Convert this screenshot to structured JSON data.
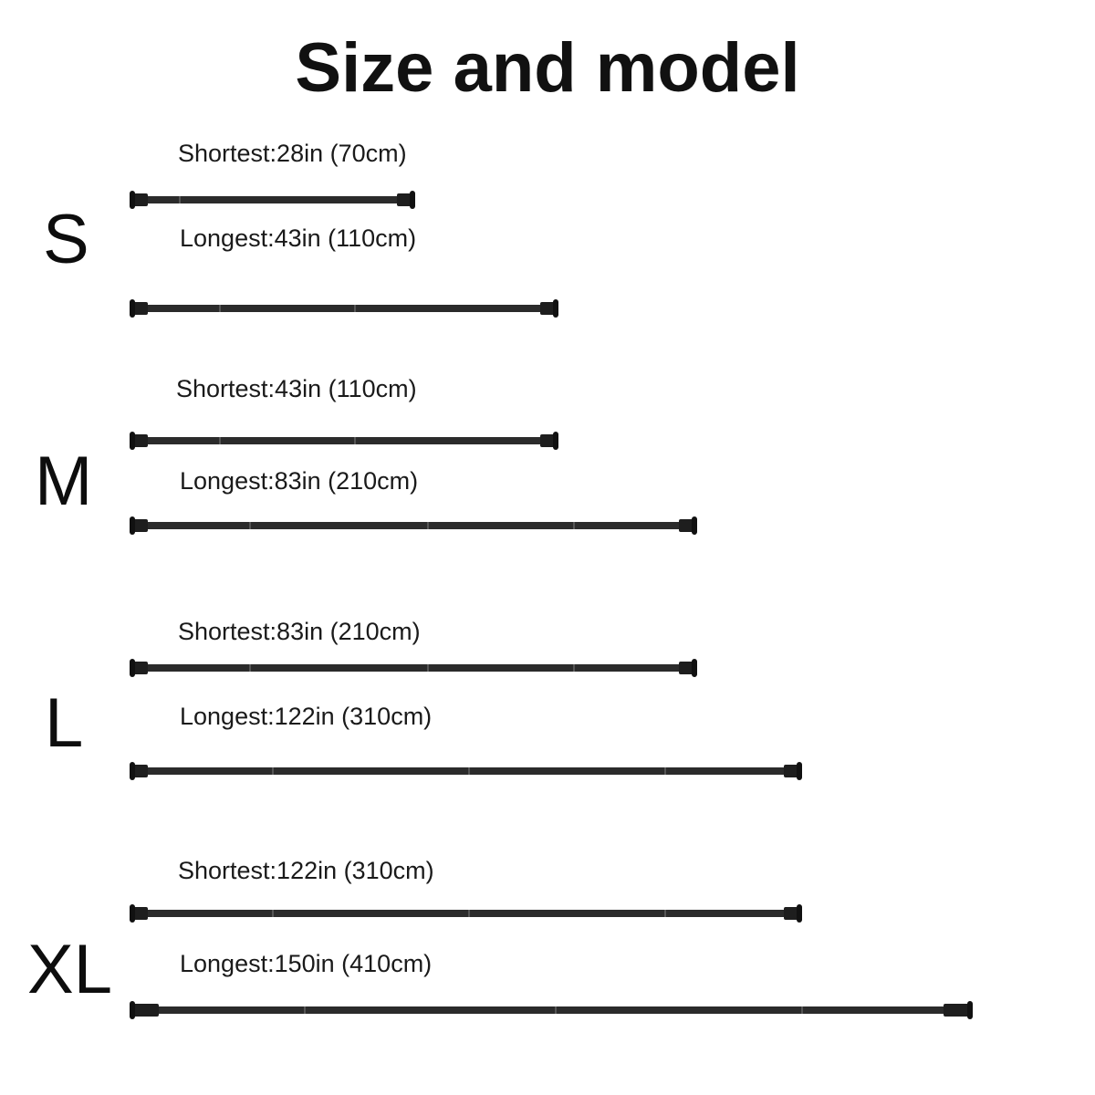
{
  "title": "Size and model",
  "models": [
    {
      "size": "S",
      "shortest": {
        "label": "Shortest:28in (70cm)",
        "in": 28,
        "cm": 70
      },
      "longest": {
        "label": "Longest:43in (110cm)",
        "in": 43,
        "cm": 110
      }
    },
    {
      "size": "M",
      "shortest": {
        "label": "Shortest:43in (110cm)",
        "in": 43,
        "cm": 110
      },
      "longest": {
        "label": "Longest:83in (210cm)",
        "in": 83,
        "cm": 210
      }
    },
    {
      "size": "L",
      "shortest": {
        "label": "Shortest:83in (210cm)",
        "in": 83,
        "cm": 210
      },
      "longest": {
        "label": "Longest:122in (310cm)",
        "in": 122,
        "cm": 310
      }
    },
    {
      "size": "XL",
      "shortest": {
        "label": "Shortest:122in (310cm)",
        "in": 122,
        "cm": 310
      },
      "longest": {
        "label": "Longest:150in (410cm)",
        "in": 150,
        "cm": 410
      }
    }
  ],
  "colors": {
    "rod": "#2b2b2b",
    "cap": "#1e1e1e",
    "text": "#111111"
  },
  "icons": {
    "rod": "telescopic-rod-icon"
  }
}
